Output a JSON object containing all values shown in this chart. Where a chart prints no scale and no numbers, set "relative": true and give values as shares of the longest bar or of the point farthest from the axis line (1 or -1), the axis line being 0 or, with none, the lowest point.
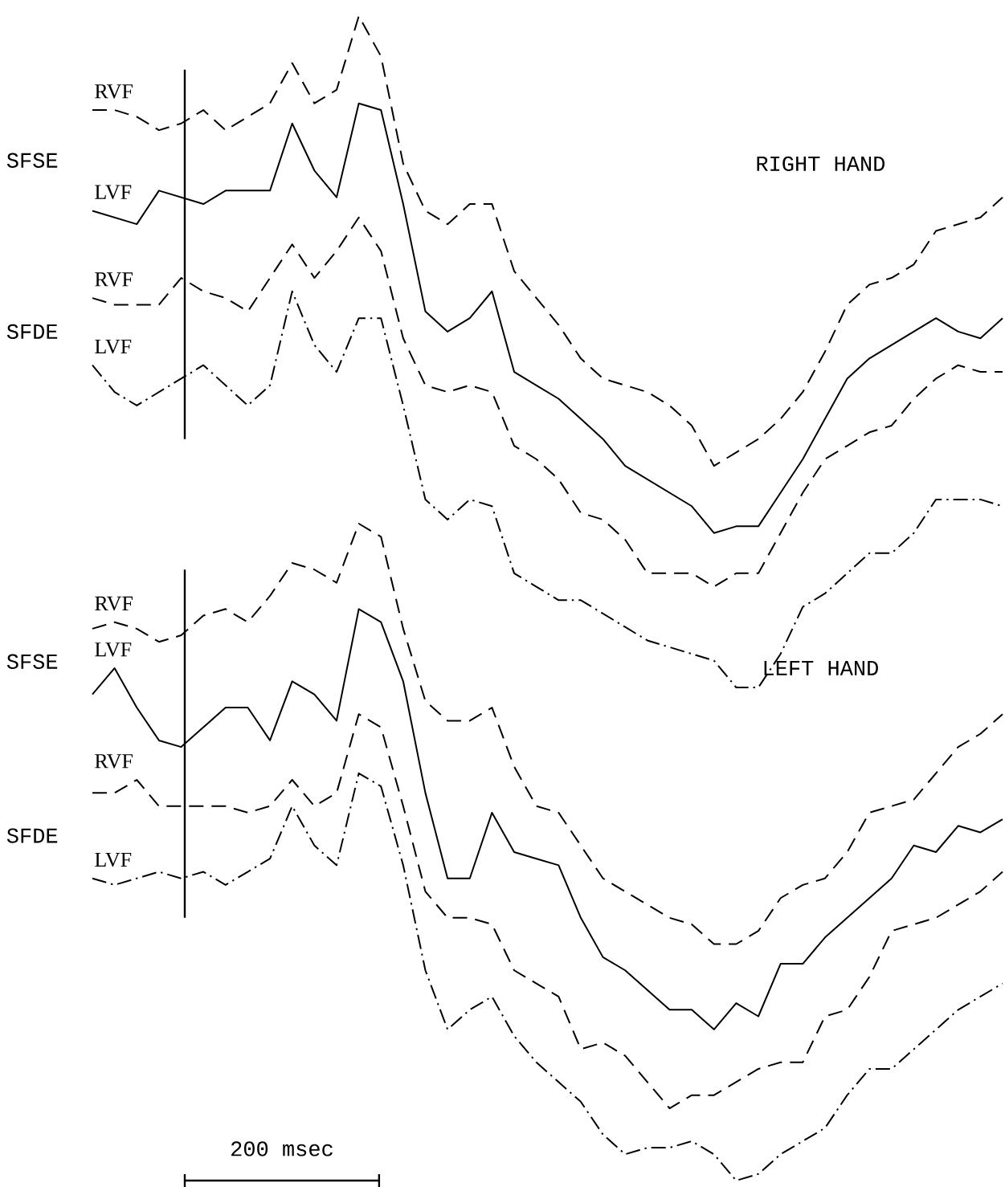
{
  "chart_data": [
    {
      "type": "line",
      "relative": true,
      "categories": [
        null,
        null,
        null,
        null,
        null,
        null,
        null,
        null,
        null,
        null,
        null,
        null,
        null,
        null,
        null,
        null,
        null,
        null,
        null,
        null,
        null,
        null,
        null,
        null,
        null,
        null,
        null,
        null,
        null,
        null,
        null,
        null,
        null,
        null,
        null,
        null,
        null,
        null,
        null,
        null,
        null,
        null
      ],
      "annotations": [
        "SFSE",
        "SFDE",
        "RIGHT HAND"
      ],
      "series": [
        {
          "name": "RVF",
          "color": "#000000",
          "line_style": "dashed",
          "values": [
            0.86,
            0.86,
            0.85,
            0.83,
            0.84,
            0.86,
            0.83,
            0.85,
            0.87,
            0.93,
            0.87,
            0.89,
            1.0,
            0.94,
            0.78,
            0.71,
            0.69,
            0.72,
            0.72,
            0.62,
            0.58,
            0.54,
            0.49,
            0.46,
            0.45,
            0.44,
            0.42,
            0.39,
            0.33,
            0.35,
            0.37,
            0.4,
            0.44,
            0.5,
            0.57,
            0.6,
            0.61,
            0.63,
            0.68,
            0.69,
            0.7,
            0.73
          ]
        },
        {
          "name": "LVF",
          "color": "#000000",
          "line_style": "solid",
          "values": [
            0.71,
            0.7,
            0.69,
            0.74,
            0.73,
            0.72,
            0.74,
            0.74,
            0.74,
            0.84,
            0.77,
            0.73,
            0.87,
            0.86,
            0.72,
            0.56,
            0.53,
            0.55,
            0.59,
            0.47,
            0.45,
            0.43,
            0.4,
            0.37,
            0.33,
            0.31,
            0.29,
            0.27,
            0.23,
            0.24,
            0.24,
            0.29,
            0.34,
            0.4,
            0.46,
            0.49,
            0.51,
            0.53,
            0.55,
            0.53,
            0.52,
            0.55
          ]
        },
        {
          "name": "RVF",
          "color": "#000000",
          "line_style": "dashed",
          "values": [
            0.58,
            0.57,
            0.57,
            0.57,
            0.61,
            0.59,
            0.58,
            0.56,
            0.61,
            0.66,
            0.61,
            0.65,
            0.7,
            0.65,
            0.52,
            0.45,
            0.44,
            0.45,
            0.44,
            0.36,
            0.34,
            0.31,
            0.26,
            0.25,
            0.22,
            0.17,
            0.17,
            0.17,
            0.15,
            0.17,
            0.17,
            0.23,
            0.29,
            0.34,
            0.36,
            0.38,
            0.39,
            0.43,
            0.46,
            0.48,
            0.47,
            0.47
          ]
        },
        {
          "name": "LVF",
          "color": "#000000",
          "line_style": "dashdot",
          "values": [
            0.48,
            0.44,
            0.42,
            0.44,
            0.46,
            0.48,
            0.45,
            0.42,
            0.45,
            0.59,
            0.51,
            0.47,
            0.55,
            0.55,
            0.42,
            0.28,
            0.25,
            0.28,
            0.27,
            0.17,
            0.15,
            0.13,
            0.13,
            0.11,
            0.09,
            0.07,
            0.06,
            0.05,
            0.04,
            0.0,
            0.0,
            0.05,
            0.12,
            0.14,
            0.17,
            0.2,
            0.2,
            0.23,
            0.28,
            0.28,
            0.28,
            0.27
          ]
        }
      ]
    },
    {
      "type": "line",
      "relative": true,
      "categories": [
        null,
        null,
        null,
        null,
        null,
        null,
        null,
        null,
        null,
        null,
        null,
        null,
        null,
        null,
        null,
        null,
        null,
        null,
        null,
        null,
        null,
        null,
        null,
        null,
        null,
        null,
        null,
        null,
        null,
        null,
        null,
        null,
        null,
        null,
        null,
        null,
        null,
        null,
        null,
        null,
        null,
        null
      ],
      "annotations": [
        "SFSE",
        "SFDE",
        "LEFT HAND",
        "200 msec"
      ],
      "series": [
        {
          "name": "RVF",
          "color": "#000000",
          "line_style": "dashed",
          "values": [
            0.84,
            0.85,
            0.84,
            0.82,
            0.83,
            0.86,
            0.87,
            0.85,
            0.89,
            0.94,
            0.93,
            0.91,
            1.0,
            0.98,
            0.84,
            0.73,
            0.7,
            0.7,
            0.72,
            0.63,
            0.57,
            0.56,
            0.51,
            0.46,
            0.44,
            0.42,
            0.4,
            0.39,
            0.36,
            0.36,
            0.38,
            0.43,
            0.45,
            0.46,
            0.5,
            0.56,
            0.57,
            0.58,
            0.62,
            0.66,
            0.68,
            0.71
          ]
        },
        {
          "name": "LVF",
          "color": "#000000",
          "line_style": "solid",
          "values": [
            0.74,
            0.78,
            0.72,
            0.67,
            0.66,
            0.69,
            0.72,
            0.72,
            0.67,
            0.76,
            0.74,
            0.7,
            0.87,
            0.85,
            0.76,
            0.59,
            0.46,
            0.46,
            0.56,
            0.5,
            0.49,
            0.48,
            0.4,
            0.34,
            0.32,
            0.29,
            0.26,
            0.26,
            0.23,
            0.27,
            0.25,
            0.33,
            0.33,
            0.37,
            0.4,
            0.43,
            0.46,
            0.51,
            0.5,
            0.54,
            0.53,
            0.55
          ]
        },
        {
          "name": "RVF",
          "color": "#000000",
          "line_style": "dashed",
          "values": [
            0.59,
            0.59,
            0.61,
            0.57,
            0.57,
            0.57,
            0.57,
            0.56,
            0.57,
            0.61,
            0.57,
            0.59,
            0.71,
            0.69,
            0.57,
            0.44,
            0.4,
            0.4,
            0.39,
            0.32,
            0.3,
            0.28,
            0.2,
            0.21,
            0.19,
            0.15,
            0.11,
            0.13,
            0.13,
            0.15,
            0.17,
            0.18,
            0.18,
            0.25,
            0.26,
            0.31,
            0.38,
            0.39,
            0.4,
            0.42,
            0.44,
            0.47
          ]
        },
        {
          "name": "LVF",
          "color": "#000000",
          "line_style": "dashdot",
          "values": [
            0.46,
            0.45,
            0.46,
            0.47,
            0.46,
            0.47,
            0.45,
            0.47,
            0.49,
            0.57,
            0.51,
            0.48,
            0.62,
            0.6,
            0.48,
            0.32,
            0.23,
            0.26,
            0.28,
            0.22,
            0.18,
            0.15,
            0.12,
            0.07,
            0.04,
            0.05,
            0.05,
            0.06,
            0.04,
            0.0,
            0.01,
            0.04,
            0.06,
            0.08,
            0.13,
            0.17,
            0.17,
            0.2,
            0.23,
            0.26,
            0.28,
            0.3
          ]
        }
      ]
    }
  ]
}
